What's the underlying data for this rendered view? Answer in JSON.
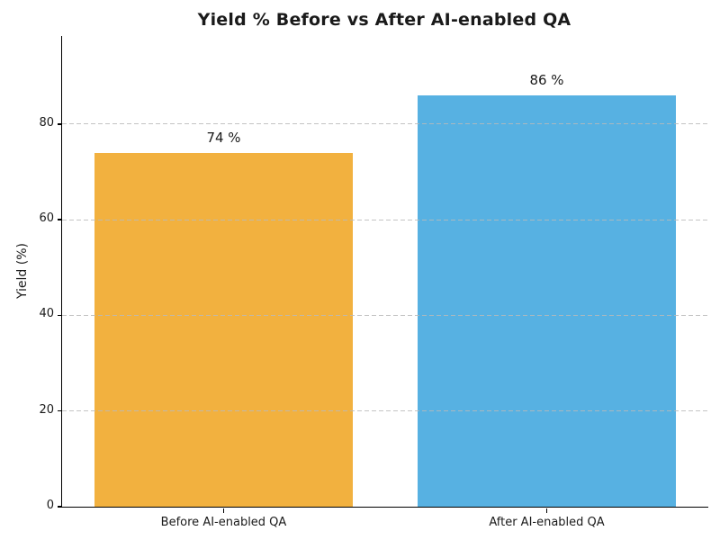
{
  "chart_data": {
    "type": "bar",
    "title": "Yield % Before vs After AI-enabled QA",
    "categories": [
      "Before AI-enabled QA",
      "After AI-enabled QA"
    ],
    "values": [
      74,
      86
    ],
    "value_labels": [
      "74 %",
      "86 %"
    ],
    "series_colors": [
      "#F2B13F",
      "#57B1E2"
    ],
    "xlabel": "",
    "ylabel": "Yield (%)",
    "yticks": [
      0,
      20,
      40,
      60,
      80
    ],
    "ylim": [
      0,
      98.4
    ],
    "bar_width_fraction": 0.8,
    "grid": {
      "axis": "y",
      "style": "dashed",
      "color": "#b9b9b9",
      "drawn_above_bars": true
    },
    "legend": null,
    "text_color": "#1a1a1a",
    "axis_color": "#000000",
    "background_color": "#ffffff"
  }
}
